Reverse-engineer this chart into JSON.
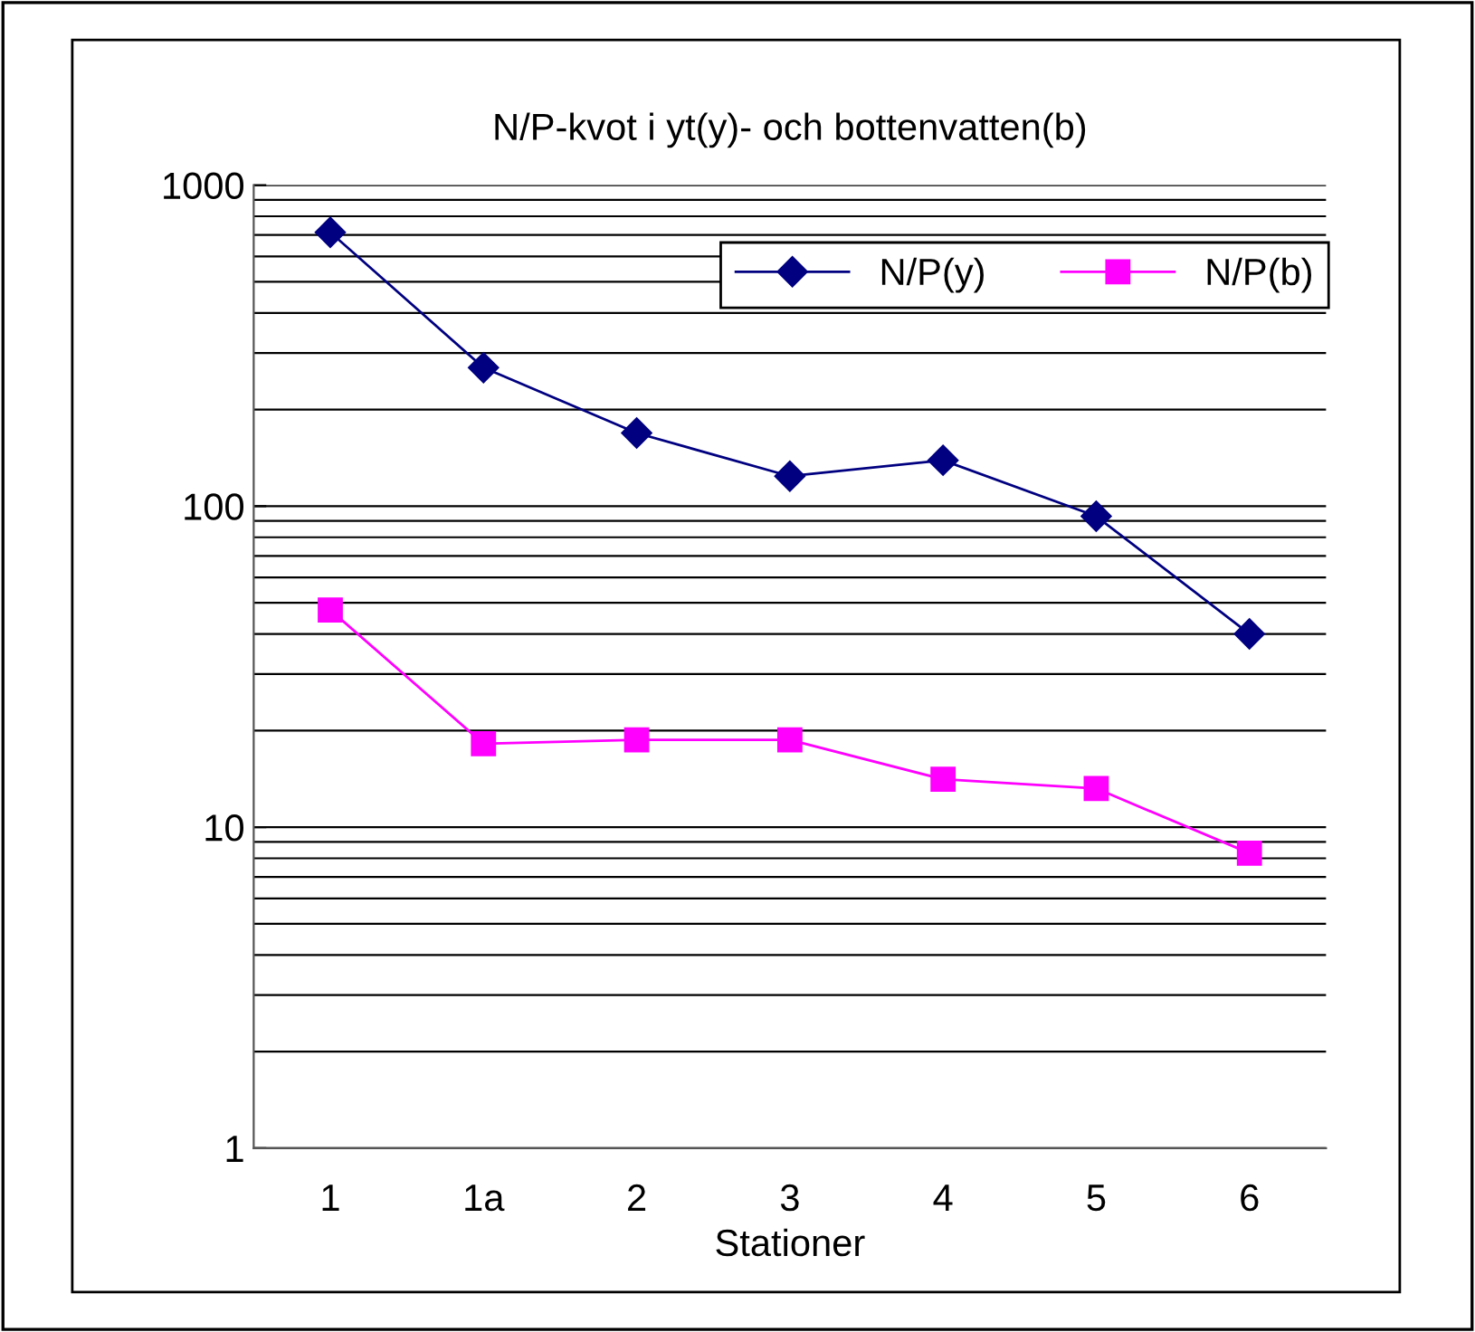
{
  "chart_data": {
    "type": "line",
    "title": "N/P-kvot i yt(y)- och bottenvatten(b)",
    "xlabel": "Stationer",
    "categories": [
      "1",
      "1a",
      "2",
      "3",
      "4",
      "5",
      "6"
    ],
    "series": [
      {
        "name": "N/P(y)",
        "color": "#000080",
        "marker": "diamond",
        "values": [
          713,
          270,
          169,
          124,
          139,
          93,
          40
        ]
      },
      {
        "name": "N/P(b)",
        "color": "#ff00ff",
        "marker": "square",
        "values": [
          47.5,
          18.2,
          18.7,
          18.7,
          14.1,
          13.2,
          8.3
        ]
      }
    ],
    "log": "y",
    "ylim": [
      1,
      1000
    ],
    "yticks": [
      1,
      10,
      100,
      1000
    ],
    "grid": "y",
    "legend": "top right",
    "line_style": "solid"
  }
}
